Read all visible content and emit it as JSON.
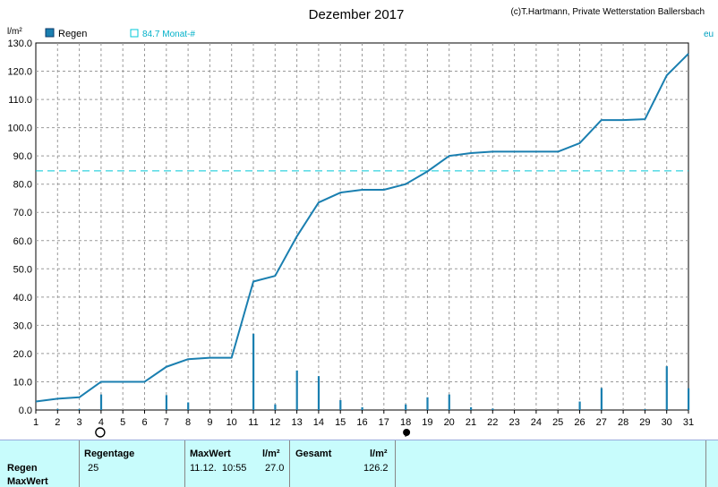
{
  "header": {
    "title": "Dezember 2017",
    "credit": "(c)T.Hartmann, Private Wetterstation Ballersbach",
    "unit": "l/m²",
    "legend_series": "Regen",
    "legend_ref": "84.7 Monat-#",
    "right_edge_text": "eu"
  },
  "colors": {
    "line": "#1a7fb0",
    "bars": "#1a7fb0",
    "reference": "#00c8d8",
    "grid": "#999999",
    "footer_bg": "#c8fcfc"
  },
  "chart_data": {
    "type": "line",
    "title": "Dezember 2017",
    "ylabel": "l/m²",
    "x": [
      1,
      2,
      3,
      4,
      5,
      6,
      7,
      8,
      9,
      10,
      11,
      12,
      13,
      14,
      15,
      16,
      17,
      18,
      19,
      20,
      21,
      22,
      23,
      24,
      25,
      26,
      27,
      28,
      29,
      30,
      31
    ],
    "xlim": [
      1,
      31
    ],
    "ylim": [
      0,
      130
    ],
    "yticks": [
      0,
      10,
      20,
      30,
      40,
      50,
      60,
      70,
      80,
      90,
      100,
      110,
      120,
      130
    ],
    "grid": true,
    "series": [
      {
        "name": "Regen",
        "kind": "line",
        "values": [
          3,
          4,
          4.5,
          10,
          10,
          10,
          15.3,
          18,
          18.5,
          18.5,
          45.5,
          47.5,
          61.5,
          73.5,
          77,
          78,
          78,
          80,
          84.5,
          90,
          91,
          91.5,
          91.5,
          91.5,
          91.5,
          94.5,
          102.7,
          102.7,
          103,
          118.5,
          126.2
        ]
      },
      {
        "kind": "bar",
        "values": [
          0,
          0.4,
          0.4,
          5.5,
          0,
          0,
          5.3,
          2.7,
          0,
          0,
          27,
          2,
          14,
          12,
          3.5,
          1,
          0,
          2,
          4.5,
          5.5,
          1,
          0.5,
          0,
          0,
          0,
          3,
          7.8,
          0,
          0.3,
          15.5,
          7.7
        ]
      }
    ],
    "reference_line": {
      "label": "84.7 Monat-#",
      "value": 84.7
    },
    "markers": [
      {
        "x": 4,
        "symbol": "moon-empty"
      },
      {
        "x": 18,
        "symbol": "moon-full"
      }
    ]
  },
  "footer": {
    "row_labels": [
      "Regen",
      "MaxWert"
    ],
    "col_regentage": "Regentage",
    "val_regentage": "25",
    "col_maxwert": "MaxWert",
    "col_maxwert_unit": "l/m²",
    "val_maxwert_date": "11.12.  10:55",
    "val_maxwert": "27.0",
    "col_gesamt": "Gesamt",
    "col_gesamt_unit": "l/m²",
    "val_gesamt": "126.2"
  }
}
